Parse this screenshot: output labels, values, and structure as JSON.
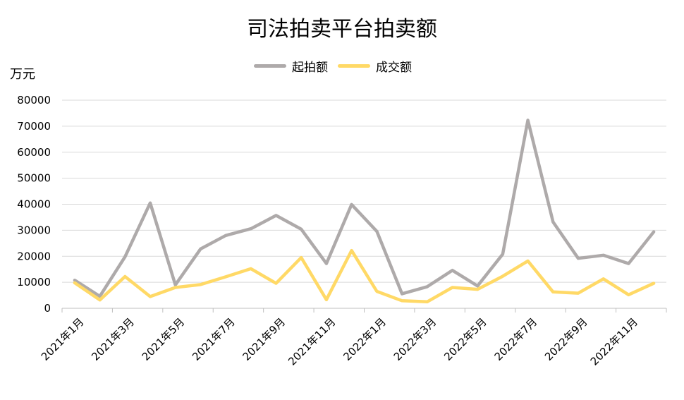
{
  "chart_data": {
    "type": "line",
    "title": "司法拍卖平台拍卖额",
    "ylabel": "万元",
    "xlabel": "",
    "ylim": [
      0,
      80000
    ],
    "yticks": [
      0,
      10000,
      20000,
      30000,
      40000,
      50000,
      60000,
      70000,
      80000
    ],
    "grid": true,
    "legend": "top-center",
    "x": [
      "2021年1月",
      "2021年2月",
      "2021年3月",
      "2021年4月",
      "2021年5月",
      "2021年6月",
      "2021年7月",
      "2021年8月",
      "2021年9月",
      "2021年10月",
      "2021年11月",
      "2021年12月",
      "2022年1月",
      "2022年2月",
      "2022年3月",
      "2022年4月",
      "2022年5月",
      "2022年6月",
      "2022年7月",
      "2022年8月",
      "2022年9月",
      "2022年10月",
      "2022年11月",
      "2022年12月"
    ],
    "xtick_labels": [
      "2021年1月",
      "2021年3月",
      "2021年5月",
      "2021年7月",
      "2021年9月",
      "2021年11月",
      "2022年1月",
      "2022年3月",
      "2022年5月",
      "2022年7月",
      "2022年9月",
      "2022年11月"
    ],
    "series": [
      {
        "name": "起拍额",
        "color": "#aeaaaa",
        "values": [
          10800,
          4600,
          19800,
          40500,
          9000,
          22800,
          28000,
          30600,
          35700,
          30400,
          17200,
          39900,
          29600,
          5600,
          8300,
          14600,
          8600,
          20800,
          72300,
          33200,
          19200,
          20400,
          17200,
          29400
        ]
      },
      {
        "name": "成交额",
        "color": "#ffd966",
        "values": [
          9800,
          3200,
          12200,
          4500,
          8000,
          9100,
          12100,
          15200,
          9600,
          19500,
          3300,
          22200,
          6500,
          2900,
          2500,
          8000,
          7300,
          12300,
          18200,
          6300,
          5800,
          11300,
          5200,
          9600
        ]
      }
    ]
  }
}
